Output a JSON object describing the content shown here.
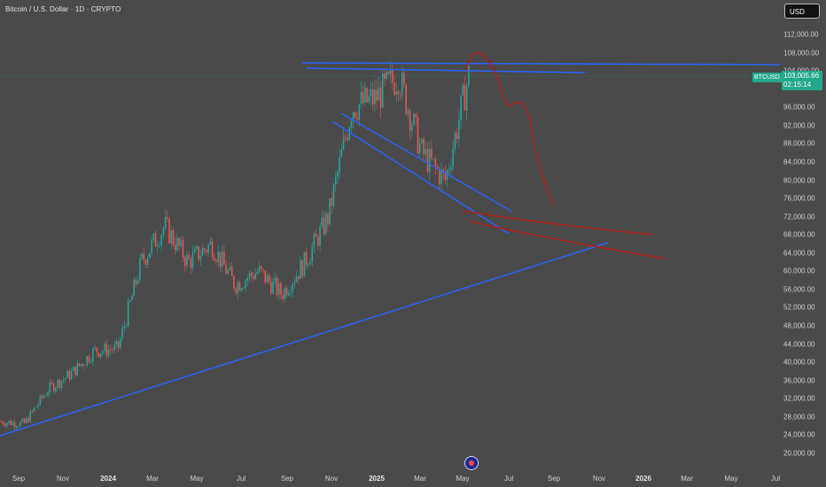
{
  "header": {
    "title": "Bitcoin / U.S. Dollar · 1D · CRYPTO",
    "currency": "USD"
  },
  "price_axis": {
    "ticks": [
      "112,000.00",
      "108,000.00",
      "104,000.00",
      "96,000.00",
      "92,000.00",
      "88,000.00",
      "84,000.00",
      "80,000.00",
      "76,000.00",
      "72,000.00",
      "68,000.00",
      "64,000.00",
      "60,000.00",
      "56,000.00",
      "52,000.00",
      "48,000.00",
      "44,000.00",
      "40,000.00",
      "36,000.00",
      "32,000.00",
      "28,000.00",
      "24,000.00",
      "20,000.00"
    ]
  },
  "time_axis": {
    "ticks": [
      "Sep",
      "Nov",
      "2024",
      "Mar",
      "May",
      "Jul",
      "Sep",
      "Nov",
      "2025",
      "Mar",
      "May",
      "Jul",
      "Sep",
      "Nov",
      "2026",
      "Mar",
      "May",
      "Jul"
    ]
  },
  "last_price": {
    "symbol": "BTCUSD",
    "value": "103,005.66",
    "countdown": "02:15:14"
  },
  "colors": {
    "up": "#26a69a",
    "down": "#ef5350",
    "trendline": "#2962ff",
    "projection": "#b71c1c",
    "background": "#4a4a4a"
  },
  "chart_data": {
    "type": "line",
    "title": "Bitcoin / U.S. Dollar · 1D · CRYPTO",
    "xlabel": "",
    "ylabel": "",
    "ylim": [
      20000,
      112000
    ],
    "x": [
      "2023-09",
      "2023-10",
      "2023-11",
      "2023-12",
      "2024-01",
      "2024-02",
      "2024-03",
      "2024-04",
      "2024-05",
      "2024-06",
      "2024-07",
      "2024-08",
      "2024-09",
      "2024-10",
      "2024-11",
      "2024-12",
      "2025-01",
      "2025-02",
      "2025-03",
      "2025-04",
      "2025-05"
    ],
    "series": [
      {
        "name": "BTCUSD",
        "values": [
          27000,
          26500,
          34000,
          37500,
          42500,
          43000,
          62000,
          70000,
          62000,
          66000,
          57000,
          60000,
          55000,
          62000,
          72000,
          96000,
          98000,
          103000,
          86000,
          80000,
          103000
        ]
      }
    ]
  }
}
